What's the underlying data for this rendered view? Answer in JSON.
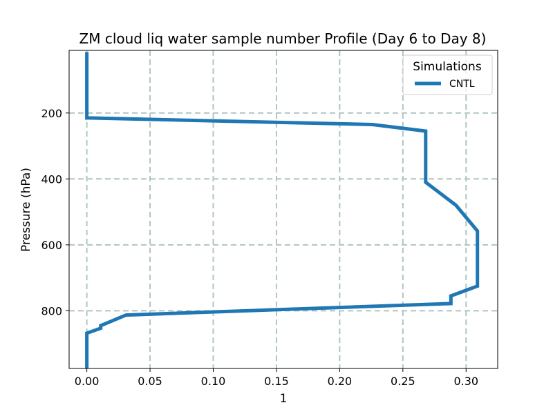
{
  "chart_data": {
    "type": "line",
    "title": "ZM cloud liq water sample number Profile (Day 6 to Day 8)",
    "xlabel": "1",
    "ylabel": "Pressure (hPa)",
    "xlim": [
      -0.014,
      0.325
    ],
    "ylim": [
      975,
      10
    ],
    "y_inverted": true,
    "grid": true,
    "x_ticks": [
      0.0,
      0.05,
      0.1,
      0.15,
      0.2,
      0.25,
      0.3
    ],
    "x_tick_labels": [
      "0.00",
      "0.05",
      "0.10",
      "0.15",
      "0.20",
      "0.25",
      "0.30"
    ],
    "y_ticks": [
      200,
      400,
      600,
      800
    ],
    "y_tick_labels": [
      "200",
      "400",
      "600",
      "800"
    ],
    "legend": {
      "title": "Simulations",
      "position": "top-right"
    },
    "series": [
      {
        "name": "CNTL",
        "color": "#1f77b4",
        "x": [
          0.0,
          0.0,
          0.0,
          0.226,
          0.268,
          0.268,
          0.268,
          0.292,
          0.309,
          0.309,
          0.309,
          0.288,
          0.288,
          0.031,
          0.011,
          0.011,
          0.0,
          0.0
        ],
        "y": [
          15,
          100,
          215,
          235,
          255,
          330,
          410,
          480,
          558,
          650,
          725,
          755,
          778,
          813,
          845,
          853,
          868,
          975
        ]
      }
    ]
  }
}
